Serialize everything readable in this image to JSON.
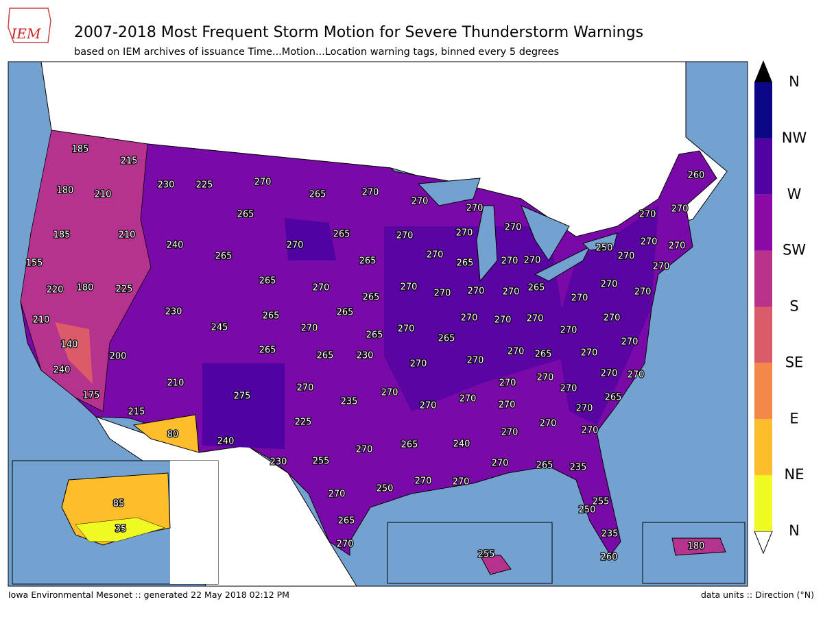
{
  "logo": "IEM",
  "header": {
    "title": "2007-2018 Most Frequent Storm Motion for Severe Thunderstorm Warnings",
    "subtitle": "based on IEM archives of issuance Time...Motion...Location warning tags, binned every 5 degrees"
  },
  "map": {
    "labels": [
      185,
      215,
      180,
      210,
      230,
      225,
      270,
      265,
      270,
      260,
      265,
      270,
      270,
      270,
      270,
      185,
      210,
      240,
      270,
      265,
      270,
      270,
      270,
      250,
      270,
      270,
      155,
      265,
      265,
      270,
      265,
      270,
      270,
      270,
      270,
      220,
      180,
      225,
      265,
      270,
      265,
      270,
      270,
      270,
      270,
      265,
      270,
      270,
      270,
      230,
      265,
      265,
      210,
      270,
      270,
      270,
      270,
      245,
      270,
      265,
      270,
      265,
      270,
      270,
      140,
      200,
      265,
      265,
      230,
      270,
      270,
      270,
      265,
      270,
      240,
      270,
      270,
      210,
      270,
      270,
      275,
      270,
      235,
      270,
      270,
      265,
      175,
      270,
      270,
      270,
      215,
      80,
      270,
      225,
      270,
      270,
      270,
      240,
      265,
      240,
      270,
      230,
      255,
      270,
      265,
      235,
      270,
      270,
      250,
      270,
      255,
      250,
      265,
      235,
      270,
      260,
      85,
      35,
      255,
      180
    ]
  },
  "colorbar": {
    "ticks": [
      "N",
      "NE",
      "E",
      "SE",
      "S",
      "SW",
      "W",
      "NW",
      "N"
    ],
    "colors": [
      "#f0f921",
      "#febd2a",
      "#f48849",
      "#db5c68",
      "#b83289",
      "#8b0aa5",
      "#5002a2",
      "#0c0786"
    ]
  },
  "footer": {
    "left": "Iowa Environmental Mesonet :: generated 22 May 2018 02:12 PM",
    "right": "data units :: Direction (°N)"
  }
}
